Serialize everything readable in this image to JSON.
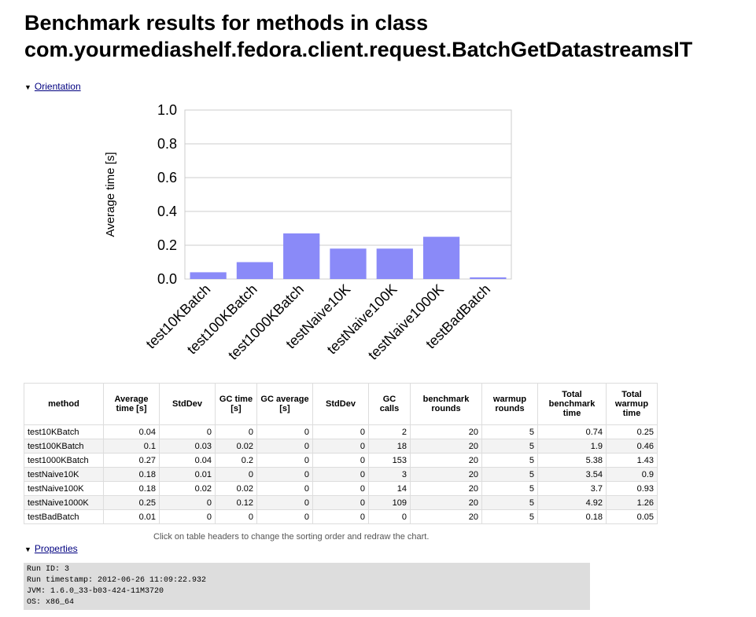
{
  "title_line1": "Benchmark results for methods in class",
  "title_line2": "com.yourmediashelf.fedora.client.request.BatchGetDatastreamsIT",
  "orientation_link": "Orientation",
  "properties_link": "Properties",
  "toggle_glyph": "▼",
  "hint": "Click on table headers to change the sorting order and redraw the chart.",
  "bar_color": "#8a8af8",
  "chart_data": {
    "type": "bar",
    "categories": [
      "test10KBatch",
      "test100KBatch",
      "test1000KBatch",
      "testNaive10K",
      "testNaive100K",
      "testNaive1000K",
      "testBadBatch"
    ],
    "values": [
      0.04,
      0.1,
      0.27,
      0.18,
      0.18,
      0.25,
      0.01
    ],
    "ylabel": "Average time [s]",
    "ylim": [
      0,
      1.0
    ],
    "yticks": [
      "0.0",
      "0.2",
      "0.4",
      "0.6",
      "0.8",
      "1.0"
    ],
    "grid": true
  },
  "table": {
    "headers": [
      "method",
      "Average time [s]",
      "StdDev",
      "GC time [s]",
      "GC average [s]",
      "StdDev",
      "GC calls",
      "benchmark rounds",
      "warmup rounds",
      "Total benchmark time",
      "Total warmup time"
    ],
    "rows": [
      [
        "test10KBatch",
        "0.04",
        "0",
        "0",
        "0",
        "0",
        "2",
        "20",
        "5",
        "0.74",
        "0.25"
      ],
      [
        "test100KBatch",
        "0.1",
        "0.03",
        "0.02",
        "0",
        "0",
        "18",
        "20",
        "5",
        "1.9",
        "0.46"
      ],
      [
        "test1000KBatch",
        "0.27",
        "0.04",
        "0.2",
        "0",
        "0",
        "153",
        "20",
        "5",
        "5.38",
        "1.43"
      ],
      [
        "testNaive10K",
        "0.18",
        "0.01",
        "0",
        "0",
        "0",
        "3",
        "20",
        "5",
        "3.54",
        "0.9"
      ],
      [
        "testNaive100K",
        "0.18",
        "0.02",
        "0.02",
        "0",
        "0",
        "14",
        "20",
        "5",
        "3.7",
        "0.93"
      ],
      [
        "testNaive1000K",
        "0.25",
        "0",
        "0.12",
        "0",
        "0",
        "109",
        "20",
        "5",
        "4.92",
        "1.26"
      ],
      [
        "testBadBatch",
        "0.01",
        "0",
        "0",
        "0",
        "0",
        "0",
        "20",
        "5",
        "0.18",
        "0.05"
      ]
    ]
  },
  "properties": [
    "Run ID: 3",
    "Run timestamp: 2012-06-26 11:09:22.932",
    "JVM: 1.6.0_33-b03-424-11M3720",
    "OS: x86_64"
  ]
}
